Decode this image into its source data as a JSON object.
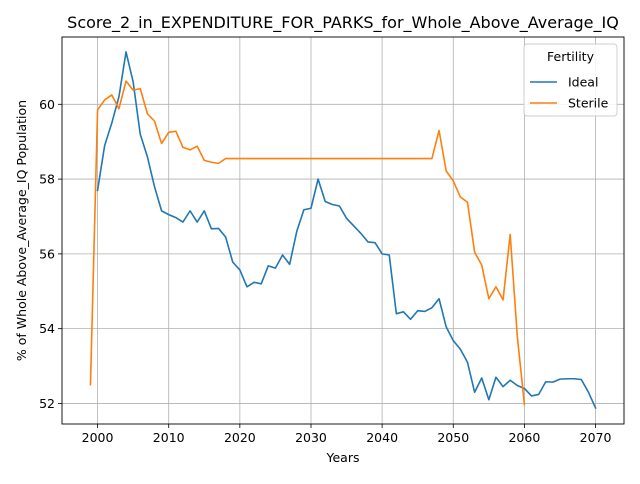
{
  "chart_data": {
    "type": "line",
    "title": "Score_2_in_EXPENDITURE_FOR_PARKS_for_Whole_Above_Average_IQ",
    "xlabel": "Years",
    "ylabel": "% of Whole Above_Average_IQ Population",
    "xlim": [
      1995,
      2074
    ],
    "ylim": [
      51.45,
      61.8
    ],
    "xticks": [
      2000,
      2010,
      2020,
      2030,
      2040,
      2050,
      2060,
      2070
    ],
    "yticks": [
      52,
      54,
      56,
      58,
      60
    ],
    "grid": true,
    "legend": {
      "title": "Fertility",
      "position": "top-right"
    },
    "series": [
      {
        "name": "Ideal",
        "color": "#1f77b4",
        "points": [
          [
            2000,
            57.7
          ],
          [
            2001,
            58.9
          ],
          [
            2002,
            59.5
          ],
          [
            2003,
            60.2
          ],
          [
            2004,
            61.4
          ],
          [
            2005,
            60.6
          ],
          [
            2006,
            59.2
          ],
          [
            2007,
            58.6
          ],
          [
            2008,
            57.8
          ],
          [
            2009,
            57.15
          ],
          [
            2010,
            57.05
          ],
          [
            2011,
            56.97
          ],
          [
            2012,
            56.85
          ],
          [
            2013,
            57.15
          ],
          [
            2014,
            56.85
          ],
          [
            2015,
            57.15
          ],
          [
            2016,
            56.67
          ],
          [
            2017,
            56.68
          ],
          [
            2018,
            56.45
          ],
          [
            2019,
            55.78
          ],
          [
            2020,
            55.57
          ],
          [
            2021,
            55.12
          ],
          [
            2022,
            55.24
          ],
          [
            2023,
            55.2
          ],
          [
            2024,
            55.68
          ],
          [
            2025,
            55.62
          ],
          [
            2026,
            55.97
          ],
          [
            2027,
            55.72
          ],
          [
            2028,
            56.6
          ],
          [
            2029,
            57.18
          ],
          [
            2030,
            57.22
          ],
          [
            2031,
            58.0
          ],
          [
            2032,
            57.4
          ],
          [
            2033,
            57.32
          ],
          [
            2034,
            57.28
          ],
          [
            2035,
            56.95
          ],
          [
            2036,
            56.75
          ],
          [
            2037,
            56.55
          ],
          [
            2038,
            56.32
          ],
          [
            2039,
            56.3
          ],
          [
            2040,
            56.0
          ],
          [
            2041,
            55.97
          ],
          [
            2042,
            54.4
          ],
          [
            2043,
            54.45
          ],
          [
            2044,
            54.25
          ],
          [
            2045,
            54.48
          ],
          [
            2046,
            54.46
          ],
          [
            2047,
            54.56
          ],
          [
            2048,
            54.8
          ],
          [
            2049,
            54.05
          ],
          [
            2050,
            53.68
          ],
          [
            2051,
            53.45
          ],
          [
            2052,
            53.1
          ],
          [
            2053,
            52.3
          ],
          [
            2054,
            52.68
          ],
          [
            2055,
            52.1
          ],
          [
            2056,
            52.7
          ],
          [
            2057,
            52.45
          ],
          [
            2058,
            52.62
          ],
          [
            2059,
            52.48
          ],
          [
            2060,
            52.4
          ],
          [
            2061,
            52.2
          ],
          [
            2062,
            52.24
          ],
          [
            2063,
            52.58
          ],
          [
            2064,
            52.57
          ],
          [
            2065,
            52.65
          ],
          [
            2066,
            52.66
          ],
          [
            2067,
            52.66
          ],
          [
            2068,
            52.64
          ],
          [
            2069,
            52.3
          ],
          [
            2070,
            51.88
          ]
        ]
      },
      {
        "name": "Sterile",
        "color": "#ff7f0e",
        "points": [
          [
            1999,
            52.5
          ],
          [
            2000,
            59.85
          ],
          [
            2001,
            60.12
          ],
          [
            2002,
            60.25
          ],
          [
            2003,
            59.88
          ],
          [
            2004,
            60.62
          ],
          [
            2005,
            60.38
          ],
          [
            2006,
            60.42
          ],
          [
            2007,
            59.75
          ],
          [
            2008,
            59.55
          ],
          [
            2009,
            58.95
          ],
          [
            2010,
            59.25
          ],
          [
            2011,
            59.28
          ],
          [
            2012,
            58.85
          ],
          [
            2013,
            58.78
          ],
          [
            2014,
            58.88
          ],
          [
            2015,
            58.5
          ],
          [
            2016,
            58.45
          ],
          [
            2017,
            58.42
          ],
          [
            2018,
            58.55
          ],
          [
            2019,
            58.55
          ],
          [
            2020,
            58.55
          ],
          [
            2025,
            58.55
          ],
          [
            2030,
            58.55
          ],
          [
            2035,
            58.55
          ],
          [
            2040,
            58.55
          ],
          [
            2045,
            58.55
          ],
          [
            2047,
            58.55
          ],
          [
            2048,
            59.3
          ],
          [
            2049,
            58.22
          ],
          [
            2050,
            57.95
          ],
          [
            2051,
            57.52
          ],
          [
            2052,
            57.38
          ],
          [
            2053,
            56.05
          ],
          [
            2054,
            55.7
          ],
          [
            2055,
            54.8
          ],
          [
            2056,
            55.12
          ],
          [
            2057,
            54.77
          ],
          [
            2058,
            56.52
          ],
          [
            2059,
            53.8
          ],
          [
            2060,
            51.97
          ]
        ]
      }
    ]
  }
}
